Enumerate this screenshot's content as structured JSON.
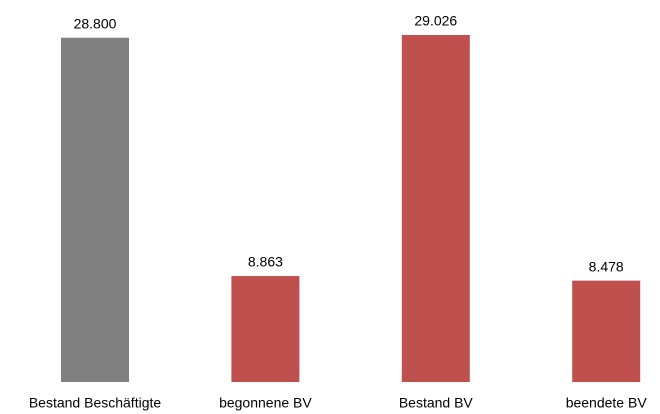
{
  "chart_data": {
    "type": "bar",
    "categories": [
      "Bestand Beschäftigte",
      "begonnene BV",
      "Bestand BV",
      "beendete BV"
    ],
    "values": [
      28800,
      8863,
      29026,
      8478
    ],
    "value_labels": [
      "28.800",
      "8.863",
      "29.026",
      "8.478"
    ],
    "colors": [
      "#808080",
      "#c0504d",
      "#c0504d",
      "#c0504d"
    ]
  }
}
